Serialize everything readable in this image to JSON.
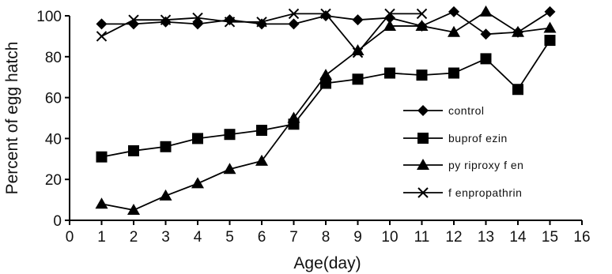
{
  "chart_data": {
    "type": "line",
    "title": "",
    "xlabel": "Age(day)",
    "ylabel": "Percent of egg hatch",
    "xlim": [
      0,
      16
    ],
    "ylim": [
      0,
      100
    ],
    "xticks": [
      "0",
      "1",
      "2",
      "3",
      "4",
      "5",
      "6",
      "7",
      "8",
      "9",
      "10",
      "11",
      "12",
      "13",
      "14",
      "15",
      "16"
    ],
    "yticks": [
      "0",
      "20",
      "40",
      "60",
      "80",
      "100"
    ],
    "grid": false,
    "legend_position": "right",
    "x": [
      1,
      2,
      3,
      4,
      5,
      6,
      7,
      8,
      9,
      10,
      11,
      12,
      13,
      14,
      15
    ],
    "series": [
      {
        "name": "control",
        "marker": "diamond",
        "x": [
          1,
          2,
          3,
          4,
          5,
          6,
          7,
          8,
          9,
          10,
          11,
          12,
          13,
          14,
          15
        ],
        "values": [
          96,
          96,
          97,
          96,
          98,
          96,
          96,
          100,
          98,
          99,
          95,
          102,
          91,
          92,
          102
        ]
      },
      {
        "name": "buprofezin",
        "marker": "square",
        "x": [
          1,
          2,
          3,
          4,
          5,
          6,
          7,
          8,
          9,
          10,
          11,
          12,
          13,
          14,
          15
        ],
        "values": [
          31,
          34,
          36,
          40,
          42,
          44,
          47,
          67,
          69,
          72,
          71,
          72,
          79,
          64,
          88
        ]
      },
      {
        "name": "pyriproxyfen",
        "marker": "triangle",
        "x": [
          1,
          2,
          3,
          4,
          5,
          6,
          7,
          8,
          9,
          10,
          11,
          12,
          13,
          14,
          15
        ],
        "values": [
          8,
          5,
          12,
          18,
          25,
          29,
          50,
          71,
          83,
          95,
          95,
          92,
          102,
          92,
          94
        ]
      },
      {
        "name": "fenpropathrin",
        "marker": "cross",
        "x": [
          1,
          2,
          3,
          4,
          5,
          6,
          7,
          8,
          9,
          10,
          11
        ],
        "values": [
          90,
          98,
          98,
          99,
          97,
          97,
          101,
          101,
          82,
          101,
          101
        ]
      }
    ],
    "legend_labels": [
      "control",
      "buprof ezin",
      "py riproxy f en",
      "f enpropathrin"
    ]
  }
}
